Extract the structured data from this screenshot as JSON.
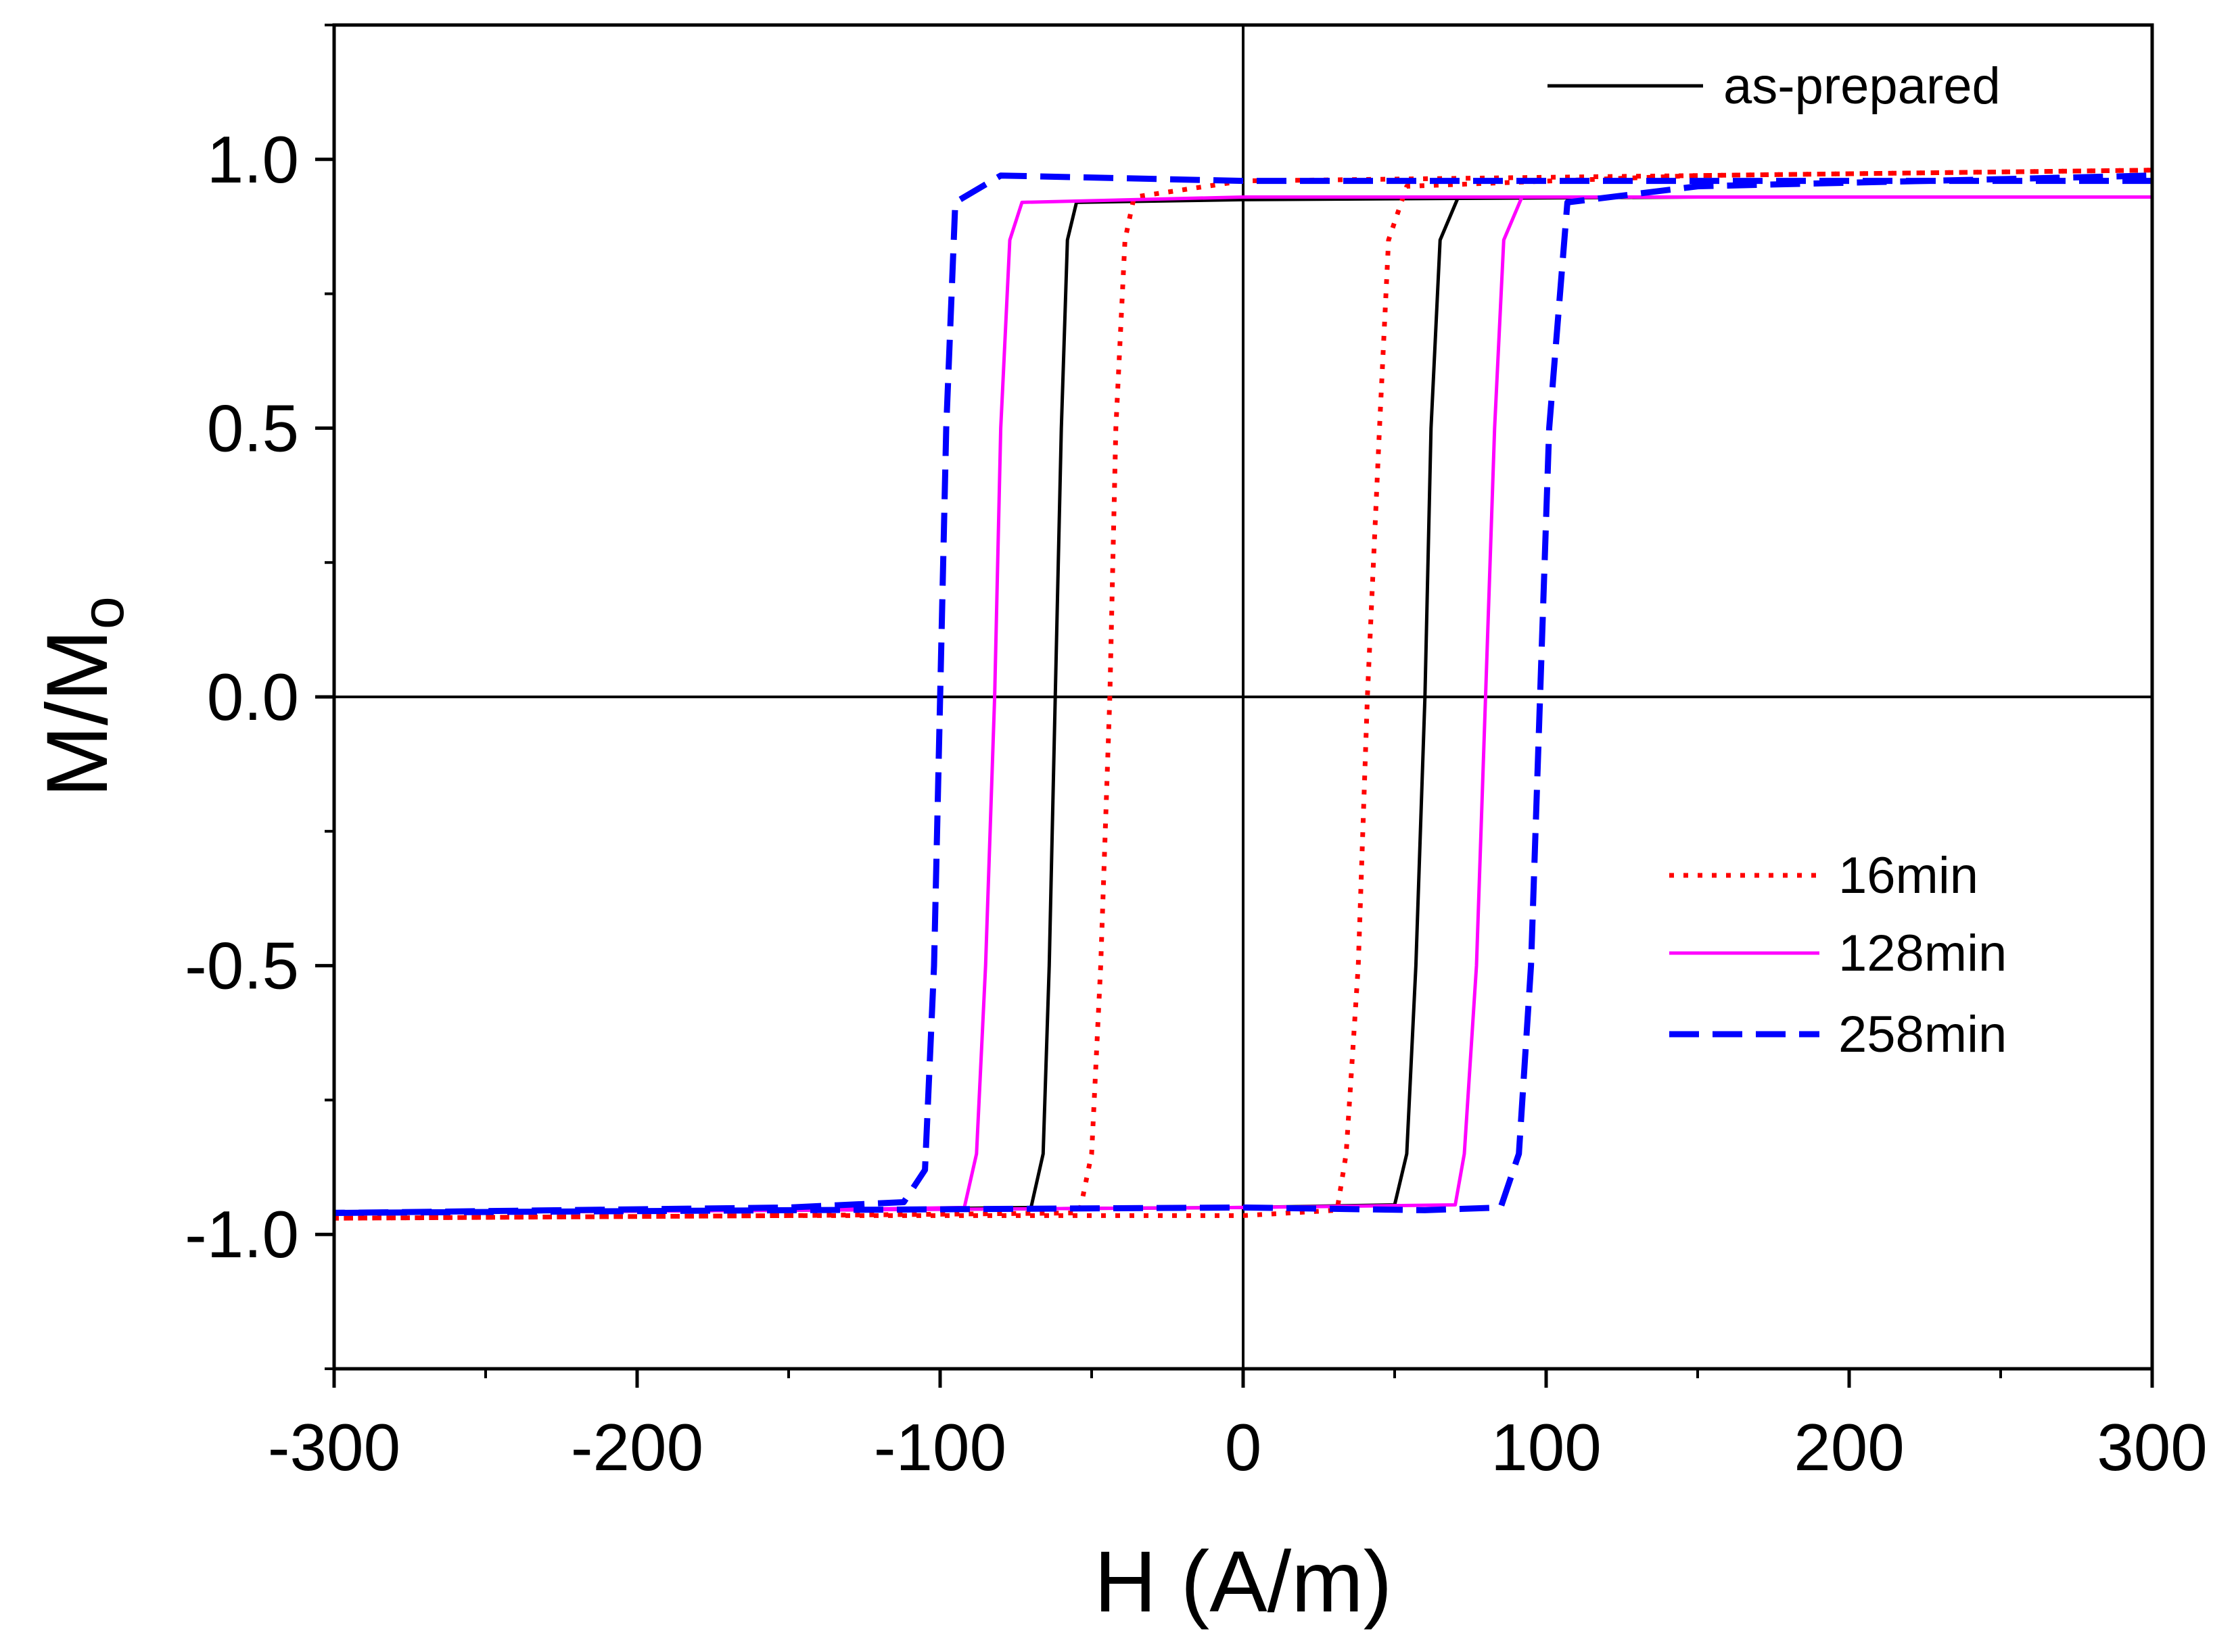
{
  "chart_data": {
    "type": "line",
    "title": "",
    "xlabel": "H (A/m)",
    "ylabel_main": "M/M",
    "ylabel_sub": "o",
    "xlim": [
      -300,
      300
    ],
    "ylim": [
      -1.25,
      1.25
    ],
    "x_ticks": [
      -300,
      -200,
      -100,
      0,
      100,
      200,
      300
    ],
    "x_tick_labels": [
      "-300",
      "-200",
      "-100",
      "0",
      "100",
      "200",
      "300"
    ],
    "y_ticks": [
      -1.0,
      -0.5,
      0.0,
      0.5,
      1.0
    ],
    "y_tick_labels": [
      "-1.0",
      "-0.5",
      "0.0",
      "0.5",
      "1.0"
    ],
    "grid": false,
    "zero_lines": true,
    "legend": [
      {
        "series": "as-prepared",
        "placement": "top-right"
      },
      {
        "series": "16min",
        "placement": "right-middle"
      },
      {
        "series": "128min",
        "placement": "right-middle"
      },
      {
        "series": "258min",
        "placement": "right-middle"
      }
    ],
    "series": [
      {
        "name": "as-prepared",
        "color": "#000000",
        "style": "solid",
        "descending": {
          "x": [
            300,
            150,
            0,
            -55,
            -58,
            -60,
            -62,
            -64,
            -66,
            -70,
            -150,
            -300
          ],
          "y": [
            0.93,
            0.93,
            0.925,
            0.92,
            0.85,
            0.5,
            0.0,
            -0.5,
            -0.85,
            -0.95,
            -0.955,
            -0.96
          ]
        },
        "ascending": {
          "x": [
            -300,
            -150,
            0,
            50,
            54,
            57,
            60,
            62,
            65,
            71,
            150,
            300
          ],
          "y": [
            -0.96,
            -0.955,
            -0.95,
            -0.945,
            -0.85,
            -0.5,
            0.0,
            0.5,
            0.85,
            0.93,
            0.93,
            0.93
          ]
        }
      },
      {
        "name": "16min",
        "color": "#ff0000",
        "style": "dotted",
        "descending": {
          "x": [
            300,
            150,
            0,
            -36,
            -39,
            -42,
            -44,
            -47,
            -50,
            -54,
            -150,
            -300
          ],
          "y": [
            0.98,
            0.97,
            0.96,
            0.93,
            0.85,
            0.5,
            0.0,
            -0.5,
            -0.85,
            -0.96,
            -0.965,
            -0.97
          ]
        },
        "ascending": {
          "x": [
            -300,
            -150,
            0,
            31,
            34,
            38,
            41,
            45,
            48,
            54,
            150,
            300
          ],
          "y": [
            -0.97,
            -0.965,
            -0.965,
            -0.955,
            -0.85,
            -0.5,
            0.0,
            0.5,
            0.85,
            0.95,
            0.97,
            0.98
          ]
        }
      },
      {
        "name": "128min",
        "color": "#ff00ff",
        "style": "solid",
        "descending": {
          "x": [
            300,
            150,
            0,
            -73,
            -77,
            -80,
            -82,
            -85,
            -88,
            -92,
            -150,
            -300
          ],
          "y": [
            0.93,
            0.93,
            0.93,
            0.92,
            0.85,
            0.5,
            0.0,
            -0.5,
            -0.85,
            -0.95,
            -0.955,
            -0.96
          ]
        },
        "ascending": {
          "x": [
            -300,
            -150,
            0,
            70,
            73,
            77,
            80,
            83,
            86,
            92,
            150,
            300
          ],
          "y": [
            -0.96,
            -0.955,
            -0.95,
            -0.945,
            -0.85,
            -0.5,
            0.0,
            0.5,
            0.85,
            0.93,
            0.93,
            0.93
          ]
        }
      },
      {
        "name": "258min",
        "color": "#0000ff",
        "style": "dashed",
        "descending": {
          "x": [
            300,
            150,
            0,
            -80,
            -95,
            -98,
            -100,
            -102,
            -105,
            -112,
            -150,
            -300
          ],
          "y": [
            0.96,
            0.96,
            0.96,
            0.97,
            0.92,
            0.5,
            0.0,
            -0.5,
            -0.88,
            -0.94,
            -0.95,
            -0.96
          ]
        },
        "ascending": {
          "x": [
            -300,
            -150,
            0,
            60,
            85,
            91,
            95,
            98,
            101,
            107,
            150,
            300
          ],
          "y": [
            -0.96,
            -0.955,
            -0.95,
            -0.955,
            -0.95,
            -0.85,
            -0.5,
            0.0,
            0.5,
            0.92,
            0.95,
            0.97
          ]
        }
      }
    ]
  }
}
